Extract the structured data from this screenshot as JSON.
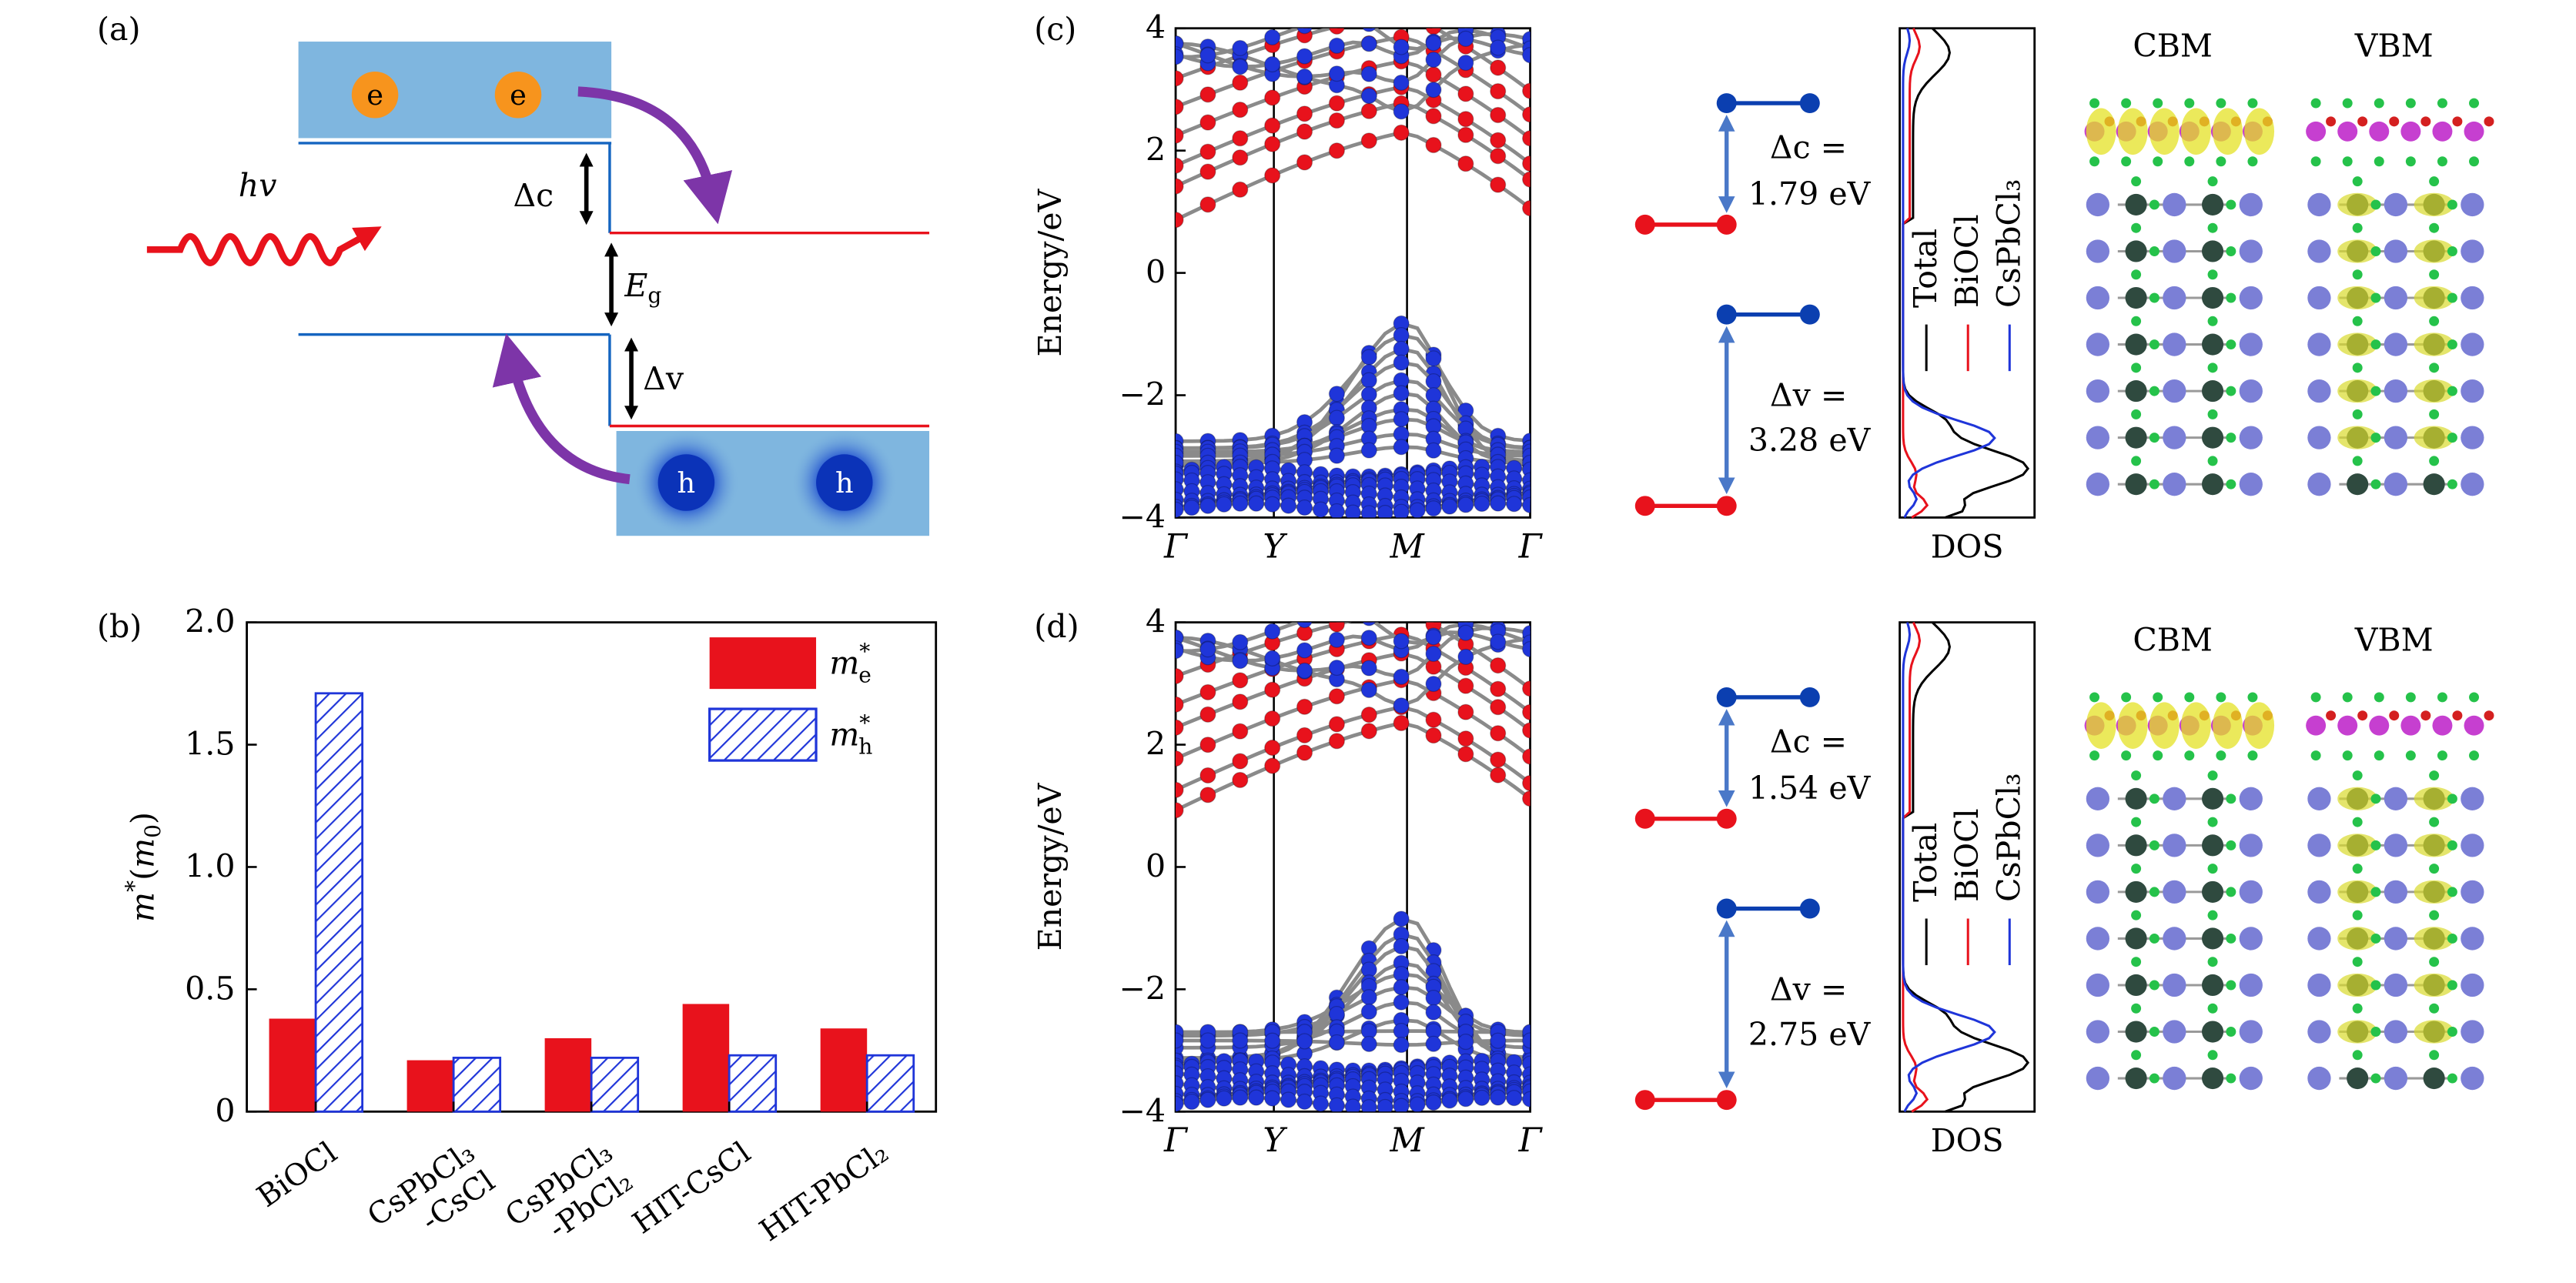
{
  "panels": {
    "a": "(a)",
    "b": "(b)",
    "c": "(c)",
    "d": "(d)"
  },
  "schematic": {
    "electron": "e",
    "hole": "h",
    "photon": "hv",
    "delta_c": "Δc",
    "band_gap": "E",
    "band_gap_sub": "g",
    "delta_v": "Δv"
  },
  "colors": {
    "red": "#e8121c",
    "blue": "#1f35d9",
    "navy": "#0b33b8",
    "light_blue": "#7fb6df",
    "purple": "#7d35a8",
    "orange": "#f7941d",
    "line_blue": "#1565c0"
  },
  "chart_data": [
    {
      "type": "bar",
      "panel": "(b)",
      "categories": [
        [
          "BiOCl"
        ],
        [
          "CsPbCl₃",
          "-CsCl"
        ],
        [
          "CsPbCl₃",
          "-PbCl₂"
        ],
        [
          "HIT-CsCl"
        ],
        [
          "HIT-PbCl₂"
        ]
      ],
      "series": [
        {
          "name": "m*e",
          "values": [
            0.38,
            0.21,
            0.3,
            0.44,
            0.34
          ],
          "fill": "solid red"
        },
        {
          "name": "m*h",
          "values": [
            1.71,
            0.22,
            0.22,
            0.23,
            0.23
          ],
          "fill": "blue hatched"
        }
      ],
      "ylabel": "m*(m0)",
      "ylim": [
        0,
        2.0
      ],
      "yticks": [
        "0",
        "0.5",
        "1.0",
        "1.5",
        "2.0"
      ],
      "legend_position": "top-right"
    },
    {
      "type": "line",
      "panel": "(c)",
      "ylabel": "Energy/eV",
      "ylim": [
        -4,
        4
      ],
      "yticks": [
        "−4",
        "−2",
        "0",
        "2",
        "4"
      ],
      "kpath": [
        "Γ",
        "Y",
        "M",
        "Γ"
      ],
      "vbm": -0.75,
      "cbm": 0.85,
      "alignment": {
        "dc_label": "Δc =",
        "dc_value": "1.79 eV",
        "dv_label": "Δv =",
        "dv_value": "3.28 eV"
      },
      "dos": {
        "legend": [
          "Total",
          "BiOCl",
          "CsPbCl₃"
        ],
        "xlabel": "DOS"
      },
      "orbitals": [
        "CBM",
        "VBM"
      ]
    },
    {
      "type": "line",
      "panel": "(d)",
      "ylabel": "Energy/eV",
      "ylim": [
        -4,
        4
      ],
      "yticks": [
        "−4",
        "−2",
        "0",
        "2",
        "4"
      ],
      "kpath": [
        "Γ",
        "Y",
        "M",
        "Γ"
      ],
      "vbm": -0.8,
      "cbm": 0.8,
      "alignment": {
        "dc_label": "Δc =",
        "dc_value": "1.54 eV",
        "dv_label": "Δv =",
        "dv_value": "2.75 eV"
      },
      "dos": {
        "legend": [
          "Total",
          "BiOCl",
          "CsPbCl₃"
        ],
        "xlabel": "DOS"
      },
      "orbitals": [
        "CBM",
        "VBM"
      ]
    }
  ]
}
